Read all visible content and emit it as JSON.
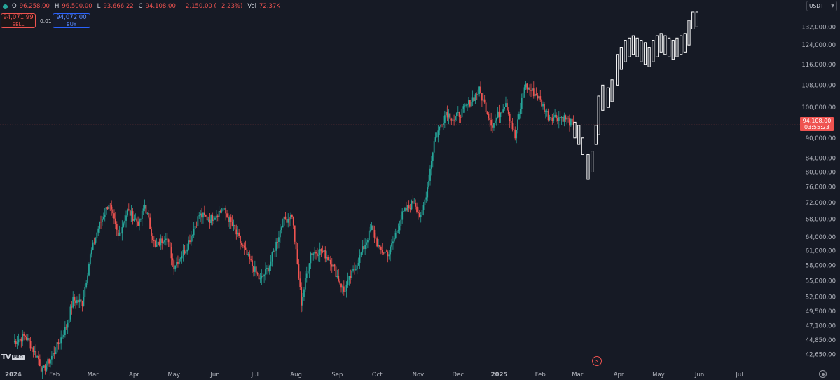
{
  "ohlc": {
    "open_label": "O",
    "open": "96,258.00",
    "high_label": "H",
    "high": "96,500.00",
    "low_label": "L",
    "low": "93,666.22",
    "close_label": "C",
    "close": "94,108.00",
    "change": "−2,150.00 (−2.23%)",
    "vol_label": "Vol",
    "vol": "72.37K"
  },
  "trade": {
    "sell_price": "94,071.99",
    "sell_label": "SELL",
    "spread": "0.01",
    "buy_price": "94,072.00",
    "buy_label": "BUY"
  },
  "currency": {
    "selected": "USDT"
  },
  "last_price": {
    "price": "94,108.00",
    "countdown": "03:55:23"
  },
  "colors": {
    "up": "#26a69a",
    "down": "#ef5350",
    "projection": "#ffffff",
    "background": "#161a25",
    "axis_text": "#b2b5be"
  },
  "icons": {
    "logo": "tradingview-logo-icon",
    "flash": "lightning-icon",
    "settings": "gear-icon",
    "dropdown": "chevron-down-icon"
  },
  "logo": {
    "mark": "TV",
    "badge": "PRO"
  },
  "chart_data": {
    "type": "candlestick",
    "title": "",
    "y_scale": "log",
    "ylim": [
      41000,
      140000
    ],
    "y_ticks": [
      "132,000.00",
      "124,000.00",
      "116,000.00",
      "108,000.00",
      "100,000.00",
      "90,000.00",
      "84,000.00",
      "80,000.00",
      "76,000.00",
      "72,000.00",
      "68,000.00",
      "64,000.00",
      "61,000.00",
      "58,000.00",
      "55,000.00",
      "52,000.00",
      "49,500.00",
      "47,100.00",
      "44,850.00",
      "42,650.00"
    ],
    "x_ticks": [
      "2024",
      "Feb",
      "Mar",
      "Apr",
      "May",
      "Jun",
      "Jul",
      "Aug",
      "Sep",
      "Oct",
      "Nov",
      "Dec",
      "2025",
      "Feb",
      "Mar",
      "Apr",
      "May",
      "Jun",
      "Jul"
    ],
    "last_price": 94108,
    "historical_path": [
      [
        "2024-01-01",
        44500
      ],
      [
        "2024-01-10",
        45500
      ],
      [
        "2024-01-20",
        42000
      ],
      [
        "2024-01-23",
        40200
      ],
      [
        "2024-02-01",
        43000
      ],
      [
        "2024-02-10",
        47000
      ],
      [
        "2024-02-15",
        51500
      ],
      [
        "2024-02-22",
        51000
      ],
      [
        "2024-02-28",
        60000
      ],
      [
        "2024-03-05",
        66000
      ],
      [
        "2024-03-13",
        72000
      ],
      [
        "2024-03-20",
        64000
      ],
      [
        "2024-03-27",
        70000
      ],
      [
        "2024-04-05",
        67000
      ],
      [
        "2024-04-09",
        71500
      ],
      [
        "2024-04-17",
        61500
      ],
      [
        "2024-04-25",
        64500
      ],
      [
        "2024-05-01",
        58000
      ],
      [
        "2024-05-10",
        61500
      ],
      [
        "2024-05-20",
        69000
      ],
      [
        "2024-05-28",
        68000
      ],
      [
        "2024-06-07",
        70500
      ],
      [
        "2024-06-14",
        66500
      ],
      [
        "2024-06-24",
        60500
      ],
      [
        "2024-07-05",
        55000
      ],
      [
        "2024-07-12",
        58000
      ],
      [
        "2024-07-22",
        67500
      ],
      [
        "2024-07-29",
        69000
      ],
      [
        "2024-08-05",
        51000
      ],
      [
        "2024-08-12",
        60500
      ],
      [
        "2024-08-20",
        61000
      ],
      [
        "2024-08-27",
        59000
      ],
      [
        "2024-09-06",
        53000
      ],
      [
        "2024-09-16",
        58500
      ],
      [
        "2024-09-27",
        66000
      ],
      [
        "2024-10-03",
        61000
      ],
      [
        "2024-10-10",
        60500
      ],
      [
        "2024-10-20",
        69000
      ],
      [
        "2024-10-29",
        72500
      ],
      [
        "2024-11-03",
        68000
      ],
      [
        "2024-11-08",
        76000
      ],
      [
        "2024-11-13",
        89000
      ],
      [
        "2024-11-22",
        98500
      ],
      [
        "2024-11-28",
        96000
      ],
      [
        "2024-12-05",
        99000
      ],
      [
        "2024-12-17",
        106000
      ],
      [
        "2024-12-27",
        94000
      ],
      [
        "2025-01-06",
        102000
      ],
      [
        "2025-01-13",
        90000
      ],
      [
        "2025-01-20",
        108000
      ],
      [
        "2025-01-30",
        104000
      ],
      [
        "2025-02-07",
        97000
      ],
      [
        "2025-02-19",
        96500
      ],
      [
        "2025-02-26",
        94000
      ]
    ],
    "projection_bars": [
      [
        "2025-02-27",
        95000,
        90000
      ],
      [
        "2025-03-02",
        94000,
        88000
      ],
      [
        "2025-03-05",
        90000,
        85000
      ],
      [
        "2025-03-09",
        85000,
        78000
      ],
      [
        "2025-03-12",
        86000,
        80000
      ],
      [
        "2025-03-15",
        94000,
        88000
      ],
      [
        "2025-03-17",
        104000,
        91000
      ],
      [
        "2025-03-20",
        108000,
        99000
      ],
      [
        "2025-03-24",
        107000,
        100000
      ],
      [
        "2025-03-27",
        110000,
        102000
      ],
      [
        "2025-03-31",
        120000,
        108000
      ],
      [
        "2025-04-03",
        123000,
        114000
      ],
      [
        "2025-04-06",
        126000,
        117000
      ],
      [
        "2025-04-09",
        127000,
        119000
      ],
      [
        "2025-04-12",
        128000,
        120000
      ],
      [
        "2025-04-15",
        127000,
        119000
      ],
      [
        "2025-04-18",
        126000,
        117000
      ],
      [
        "2025-04-21",
        125000,
        116000
      ],
      [
        "2025-04-24",
        123000,
        115000
      ],
      [
        "2025-04-27",
        126000,
        117000
      ],
      [
        "2025-04-30",
        128000,
        119000
      ],
      [
        "2025-05-03",
        129000,
        121000
      ],
      [
        "2025-05-06",
        128000,
        120000
      ],
      [
        "2025-05-09",
        127000,
        119000
      ],
      [
        "2025-05-12",
        126000,
        118000
      ],
      [
        "2025-05-15",
        127000,
        119000
      ],
      [
        "2025-05-18",
        128000,
        120000
      ],
      [
        "2025-05-21",
        129000,
        121000
      ],
      [
        "2025-05-24",
        135000,
        124000
      ],
      [
        "2025-05-27",
        139000,
        131000
      ],
      [
        "2025-05-30",
        139000,
        132000
      ]
    ]
  }
}
